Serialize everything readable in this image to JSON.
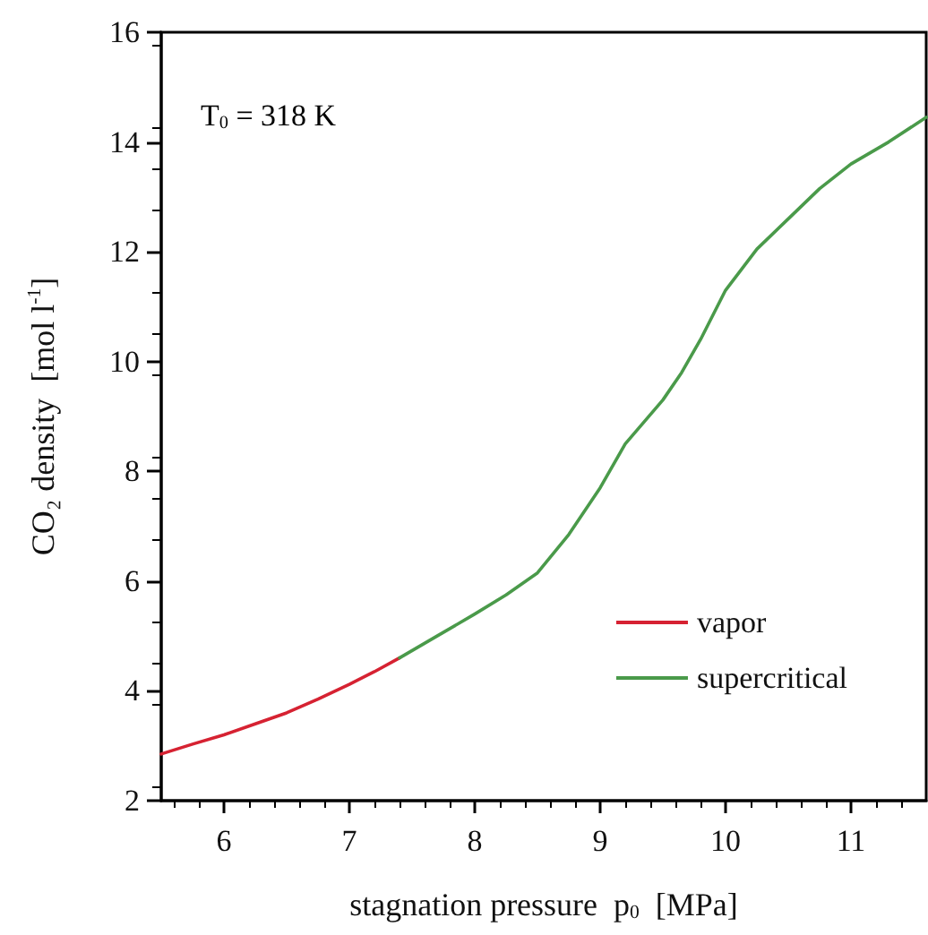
{
  "chart_data": {
    "type": "line",
    "xlabel": "stagnation pressure  p$_{0}$  [MPa]",
    "ylabel": "CO₂ density  [mol l$^{-1}$]",
    "annotations": [
      "T$_{0}$ = 318 K"
    ],
    "xlim": [
      5.5,
      11.6
    ],
    "xticks": [
      6,
      7,
      8,
      9,
      10,
      11
    ],
    "ylim": [
      2,
      16
    ],
    "yticks": [
      2,
      4,
      6,
      8,
      10,
      12,
      14,
      16
    ],
    "grid": false,
    "legend": "bottom right",
    "marker": "none",
    "line_style": "solid",
    "series": [
      {
        "name": "vapor",
        "color": "#d62232",
        "x": [
          5.5,
          5.75,
          6,
          6.25,
          6.5,
          6.75,
          7,
          7.2,
          7.4
        ],
        "values": [
          2.85,
          3.03,
          3.2,
          3.4,
          3.6,
          3.85,
          4.12,
          4.35,
          4.6
        ]
      },
      {
        "name": "supercritical",
        "color": "#4a9a4a",
        "x": [
          7.4,
          7.7,
          8,
          8.25,
          8.5,
          8.75,
          9,
          9.1,
          9.2,
          9.35,
          9.5,
          9.65,
          9.8,
          10,
          10.25,
          10.5,
          10.75,
          11,
          11.3,
          11.6
        ],
        "values": [
          4.6,
          5.0,
          5.4,
          5.75,
          6.15,
          6.85,
          7.7,
          8.1,
          8.5,
          8.9,
          9.3,
          9.8,
          10.4,
          11.3,
          12.05,
          12.6,
          13.15,
          13.6,
          14.0,
          14.45
        ]
      }
    ]
  }
}
